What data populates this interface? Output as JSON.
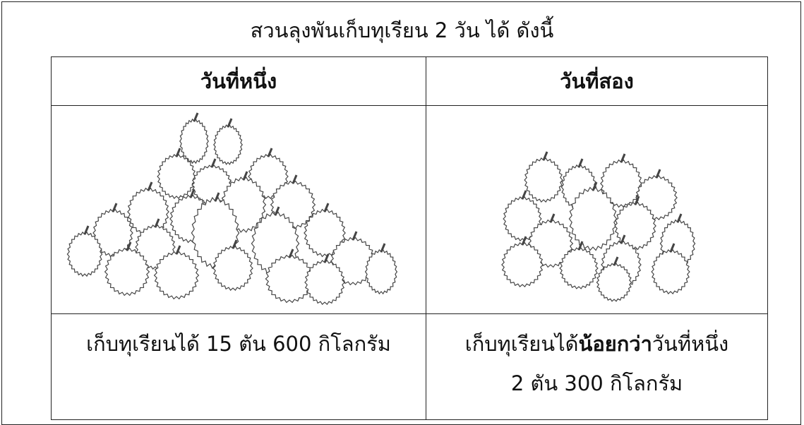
{
  "title": "สวนลุงพันเก็บทุเรียน 2 วัน ได้ ดังนี้",
  "table": {
    "headers": [
      "วันที่หนึ่ง",
      "วันที่สอง"
    ],
    "rows": [
      [
        "เก็บทุเรียนได้ 15 ตัน 600 กิโลกรัม",
        {
          "before": "เก็บทุเรียนได้",
          "emphasis": "น้อยกว่า",
          "after": "วันที่หนึ่ง",
          "line2": "2 ตัน 300 กิโลกรัม"
        }
      ]
    ]
  }
}
